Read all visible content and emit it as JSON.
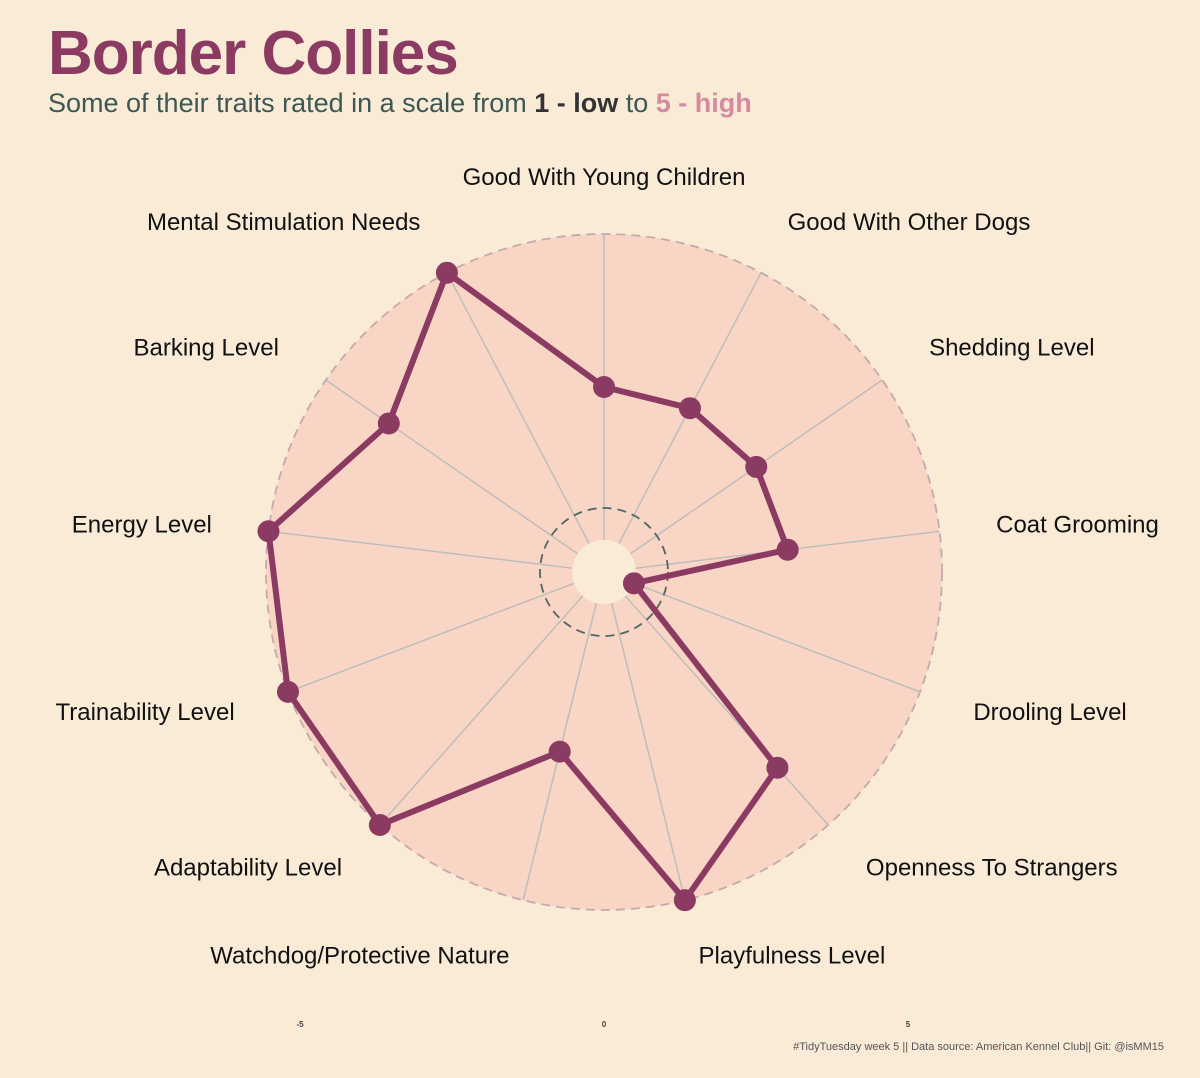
{
  "title": "Border Collies",
  "subtitle": {
    "prefix": "Some of their traits rated in a scale from ",
    "low": "1 - low",
    "middle": " to ",
    "high": "5 - high"
  },
  "caption": "#TidyTuesday week 5 || Data source: American Kennel Club|| Git: @isMM15",
  "colors": {
    "background": "#faebd7",
    "disc_fill": "#f8d5c4",
    "line": "#8b3a62",
    "grid": "#bbbbbb",
    "outer_ring": "#c4a9ae",
    "inner_ring": "#4f6766"
  },
  "chart_data": {
    "type": "radar",
    "title": "Border Collies",
    "scale": [
      1,
      5
    ],
    "x_ticks": [
      "-5",
      "0",
      "5"
    ],
    "traits": [
      {
        "name": "Good With Young Children",
        "value": 3
      },
      {
        "name": "Good With Other Dogs",
        "value": 3
      },
      {
        "name": "Shedding Level",
        "value": 3
      },
      {
        "name": "Coat Grooming",
        "value": 3
      },
      {
        "name": "Drooling Level",
        "value": 1
      },
      {
        "name": "Openness To Strangers",
        "value": 4
      },
      {
        "name": "Playfulness Level",
        "value": 5
      },
      {
        "name": "Watchdog/Protective Nature",
        "value": 3
      },
      {
        "name": "Adaptability Level",
        "value": 5
      },
      {
        "name": "Trainability Level",
        "value": 5
      },
      {
        "name": "Energy Level",
        "value": 5
      },
      {
        "name": "Barking Level",
        "value": 4
      },
      {
        "name": "Mental Stimulation Needs",
        "value": 5
      }
    ]
  }
}
